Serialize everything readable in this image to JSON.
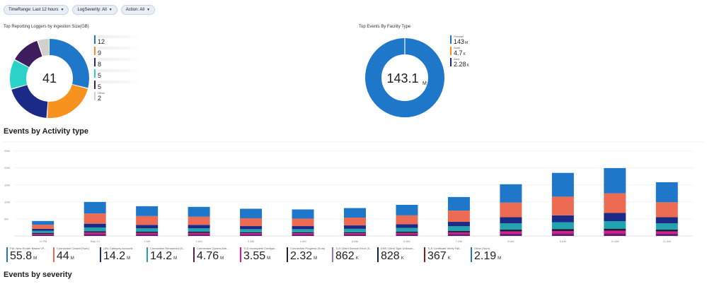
{
  "filters": [
    {
      "label": "TimeRange: Last 12 hours"
    },
    {
      "label": "LogSeverity: All"
    },
    {
      "label": "Action: All"
    }
  ],
  "loggers": {
    "title": "Top Reporting Loggers by Ingestion Size(GB)",
    "total": "41",
    "items": [
      {
        "label": "",
        "value": "12",
        "color": "#1f77c9"
      },
      {
        "label": "",
        "value": "9",
        "color": "#f7921e"
      },
      {
        "label": "",
        "value": "8",
        "color": "#1b2a87"
      },
      {
        "label": "",
        "value": "5",
        "color": "#2bd2c7"
      },
      {
        "label": "",
        "value": "5",
        "color": "#3d1d5c"
      },
      {
        "label": "Other",
        "value": "2",
        "color": "#d2d0ce"
      }
    ]
  },
  "facility": {
    "title": "Top Events By Facility Type",
    "total_value": "143.1",
    "total_unit": "M",
    "items": [
      {
        "label": "Firewall",
        "value": "143",
        "unit": "M",
        "color": "#1f77c9"
      },
      {
        "label": "Audit",
        "value": "4.7",
        "unit": "K",
        "color": "#f7921e"
      },
      {
        "label": "Alert",
        "value": "2.28",
        "unit": "K",
        "color": "#1b2a87"
      }
    ]
  },
  "activity": {
    "title": "Events by Activity type",
    "legend": [
      {
        "label": "FW: New Router Based VP...",
        "value": "55.8",
        "unit": "M",
        "color": "#1f77c9"
      },
      {
        "label": "Connection Closed (Sum)",
        "value": "44",
        "unit": "M",
        "color": "#ee6b53"
      },
      {
        "label": "URL Category Accounti...",
        "value": "14.2",
        "unit": "M",
        "color": "#1b2a87"
      },
      {
        "label": "Connection Reroached (S...",
        "value": "14.2",
        "unit": "M",
        "color": "#21a3b0"
      },
      {
        "label": "Connection Closed-Alre...",
        "value": "4.76",
        "unit": "M",
        "color": "#6b1848"
      },
      {
        "label": "TLS Incomplete Configur...",
        "value": "3.55",
        "unit": "M",
        "color": "#e3158f"
      },
      {
        "label": "Connection Progress (Sum)",
        "value": "2.32",
        "unit": "M",
        "color": "#1f1f3a"
      },
      {
        "label": "TLS Client Service Error (S...",
        "value": "862",
        "unit": "K",
        "color": "#8d6fd6"
      },
      {
        "label": "DNS Client Type Unknow...",
        "value": "828",
        "unit": "K",
        "color": "#0e1f5a"
      },
      {
        "label": "TLS Certificate Verify Fail...",
        "value": "367",
        "unit": "K",
        "color": "#8b1a1a"
      },
      {
        "label": "Other (Sum)",
        "value": "2.19",
        "unit": "M",
        "color": "#1f77c9"
      }
    ]
  },
  "severity": {
    "title": "Events by severity"
  },
  "chart_data": {
    "type": "bar",
    "stacked": true,
    "categories": [
      "11 PM",
      "May 13",
      "1 AM",
      "2 AM",
      "3 AM",
      "4 AM",
      "5 AM",
      "6 AM",
      "7 AM",
      "8 AM",
      "9 AM",
      "10 AM",
      "11 AM"
    ],
    "y_ticks": [
      "5M",
      "10M",
      "15M",
      "20M",
      "25M"
    ],
    "ylim": [
      0,
      27
    ],
    "grid": true,
    "series": [
      {
        "name": "Other (Sum)",
        "color": "#6a2070",
        "values": [
          0.4,
          0.6,
          0.55,
          0.55,
          0.5,
          0.5,
          0.5,
          0.55,
          0.6,
          0.7,
          0.75,
          0.8,
          0.7
        ]
      },
      {
        "name": "TLS Incomplete Configur...",
        "color": "#e3158f",
        "values": [
          0.2,
          0.4,
          0.35,
          0.35,
          0.3,
          0.3,
          0.3,
          0.35,
          0.45,
          0.6,
          0.65,
          0.7,
          0.6
        ]
      },
      {
        "name": "Connection Progress (Sum)",
        "color": "#1f1f3a",
        "values": [
          0.3,
          0.4,
          0.35,
          0.35,
          0.3,
          0.3,
          0.3,
          0.35,
          0.4,
          0.6,
          0.65,
          0.65,
          0.6
        ]
      },
      {
        "name": "Connection Reroached (S...",
        "color": "#21a3b0",
        "values": [
          0.6,
          1.1,
          1.0,
          1.0,
          0.9,
          0.9,
          1.0,
          1.1,
          1.4,
          1.8,
          2.0,
          2.2,
          1.8
        ]
      },
      {
        "name": "URL Category Accounti...",
        "color": "#1b2a87",
        "values": [
          0.6,
          1.1,
          1.0,
          1.0,
          0.9,
          0.9,
          1.0,
          1.1,
          1.3,
          1.8,
          2.0,
          2.4,
          1.8
        ]
      },
      {
        "name": "Connection Closed (Sum)",
        "color": "#ee6b53",
        "values": [
          1.2,
          3.0,
          2.6,
          2.4,
          2.3,
          2.2,
          2.3,
          2.6,
          3.3,
          4.3,
          5.5,
          5.8,
          4.4
        ]
      },
      {
        "name": "FW: New Router Based VP...",
        "color": "#1f77c9",
        "values": [
          1.1,
          3.4,
          2.9,
          2.9,
          2.8,
          2.7,
          2.8,
          3.1,
          4.0,
          5.4,
          7.0,
          7.4,
          5.9
        ]
      }
    ]
  }
}
